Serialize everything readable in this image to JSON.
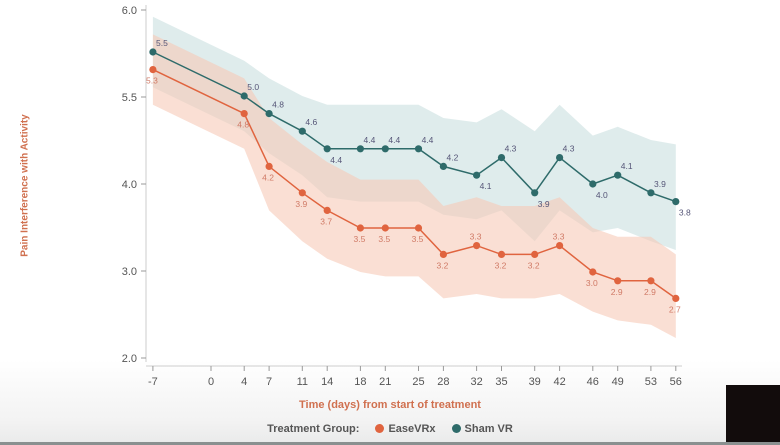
{
  "chart_data": {
    "type": "line",
    "title": "",
    "xlabel": "Time (days) from start of treatment",
    "ylabel": "Pain Interference with Activity",
    "y_tick_labels": [
      "6.0",
      "5.5",
      "4.0",
      "3.0",
      "2.0"
    ],
    "x": [
      -7,
      4,
      7,
      11,
      14,
      18,
      21,
      25,
      28,
      32,
      35,
      39,
      42,
      46,
      49,
      53,
      56
    ],
    "x_tick_labels": [
      "-7",
      "0",
      "4",
      "7",
      "11",
      "14",
      "18",
      "21",
      "25",
      "28",
      "32",
      "35",
      "39",
      "42",
      "46",
      "49",
      "53",
      "56"
    ],
    "x_tick_values": [
      -7,
      0,
      4,
      7,
      11,
      14,
      18,
      21,
      25,
      28,
      32,
      35,
      39,
      42,
      46,
      49,
      53,
      56
    ],
    "series": [
      {
        "name": "EaseVRx",
        "color": "#e0643f",
        "band_color": "#f7c9b8",
        "values": [
          5.3,
          4.8,
          4.2,
          3.9,
          3.7,
          3.5,
          3.5,
          3.5,
          3.2,
          3.3,
          3.2,
          3.2,
          3.3,
          3.0,
          2.9,
          2.9,
          2.7
        ],
        "lower": [
          4.9,
          4.4,
          3.7,
          3.35,
          3.15,
          3.0,
          2.95,
          2.95,
          2.7,
          2.75,
          2.7,
          2.7,
          2.75,
          2.55,
          2.45,
          2.4,
          2.25
        ],
        "upper": [
          5.7,
          5.2,
          4.75,
          4.45,
          4.25,
          4.05,
          4.05,
          4.05,
          3.75,
          3.85,
          3.75,
          3.75,
          3.85,
          3.5,
          3.4,
          3.4,
          3.2
        ]
      },
      {
        "name": "Sham VR",
        "color": "#2e6b6a",
        "band_color": "#c9dfe0",
        "values": [
          5.5,
          5.0,
          4.8,
          4.6,
          4.4,
          4.4,
          4.4,
          4.4,
          4.2,
          4.1,
          4.3,
          3.9,
          4.3,
          4.0,
          4.1,
          3.9,
          3.8
        ],
        "lower": [
          5.1,
          4.6,
          4.35,
          4.1,
          3.85,
          3.8,
          3.8,
          3.8,
          3.65,
          3.6,
          3.7,
          3.35,
          3.7,
          3.45,
          3.5,
          3.35,
          3.25
        ],
        "upper": [
          5.9,
          5.4,
          5.2,
          5.0,
          4.9,
          4.9,
          4.9,
          4.9,
          4.75,
          4.7,
          4.85,
          4.6,
          4.9,
          4.55,
          4.65,
          4.5,
          4.45
        ]
      }
    ],
    "legend": {
      "title": "Treatment Group:",
      "placement": "bottom-center"
    },
    "grid": false
  }
}
